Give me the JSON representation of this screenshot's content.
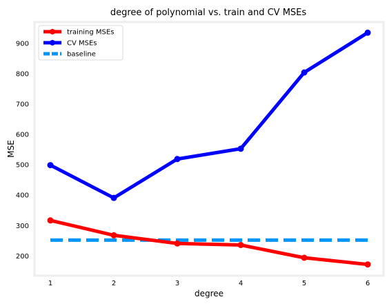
{
  "chart_data": {
    "type": "line",
    "title": "degree of polynomial vs. train and CV MSEs",
    "xlabel": "degree",
    "ylabel": "MSE",
    "x": [
      1,
      2,
      3,
      4,
      5,
      6
    ],
    "xticks": [
      "1",
      "2",
      "3",
      "4",
      "5",
      "6"
    ],
    "yticks": [
      "200",
      "300",
      "400",
      "500",
      "600",
      "700",
      "800",
      "900"
    ],
    "xlim": [
      0.75,
      6.25
    ],
    "ylim": [
      135,
      970
    ],
    "grid": false,
    "legend_position": "top-left",
    "series": [
      {
        "name": "training MSEs",
        "values": [
          317,
          268,
          241,
          236,
          194,
          172
        ],
        "color": "#ff0000",
        "marker": "circle",
        "style": "solid"
      },
      {
        "name": "CV MSEs",
        "values": [
          499,
          391,
          519,
          553,
          804,
          935
        ],
        "color": "#0000ff",
        "marker": "circle",
        "style": "solid"
      },
      {
        "name": "baseline",
        "values": [
          252,
          252,
          252,
          252,
          252,
          252
        ],
        "color": "#0096ff",
        "marker": "none",
        "style": "dashed"
      }
    ]
  }
}
